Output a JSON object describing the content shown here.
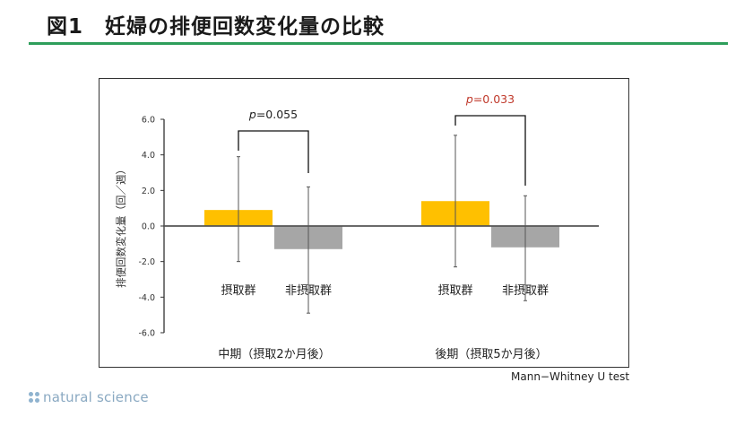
{
  "header": {
    "title": "図1　妊婦の排便回数変化量の比較",
    "rule_color": "#2e9e5b"
  },
  "footer": {
    "test_note": "Mann−Whitney U test",
    "logo_text": "natural science",
    "logo_icon": "four-dots-logo-icon"
  },
  "colors": {
    "intake": "#ffc000",
    "non_intake": "#a6a6a6",
    "p_significant": "#c0392b",
    "p_normal": "#222222"
  },
  "chart_data": {
    "type": "bar",
    "title": "妊婦の排便回数変化量の比較",
    "ylabel": "排便回数変化量（回／週）",
    "xlabel": "",
    "ylim": [
      -6.0,
      6.0
    ],
    "yticks": [
      "6.0",
      "4.0",
      "2.0",
      "0.0",
      "-2.0",
      "-4.0",
      "-6.0"
    ],
    "ytick_values": [
      6,
      4,
      2,
      0,
      -2,
      -4,
      -6
    ],
    "grid": false,
    "legend": "none (group labels drawn under bars)",
    "categories": [
      "中期（摂取2か月後）",
      "後期（摂取5か月後）"
    ],
    "series": [
      {
        "name": "摂取群",
        "color": "#ffc000",
        "values": [
          0.9,
          1.4
        ],
        "error_upper": [
          3.9,
          5.1
        ],
        "error_lower": [
          -2.0,
          -2.3
        ]
      },
      {
        "name": "非摂取群",
        "color": "#a6a6a6",
        "values": [
          -1.3,
          -1.2
        ],
        "error_upper": [
          2.2,
          1.7
        ],
        "error_lower": [
          -4.9,
          -4.2
        ]
      }
    ],
    "annotations": [
      {
        "category": "中期（摂取2か月後）",
        "text": "p=0.055",
        "p_label": "p",
        "p_value": "=0.055",
        "significant": false
      },
      {
        "category": "後期（摂取5か月後）",
        "text": "p=0.033",
        "p_label": "p",
        "p_value": "=0.033",
        "significant": true
      }
    ],
    "test": "Mann−Whitney U test"
  }
}
